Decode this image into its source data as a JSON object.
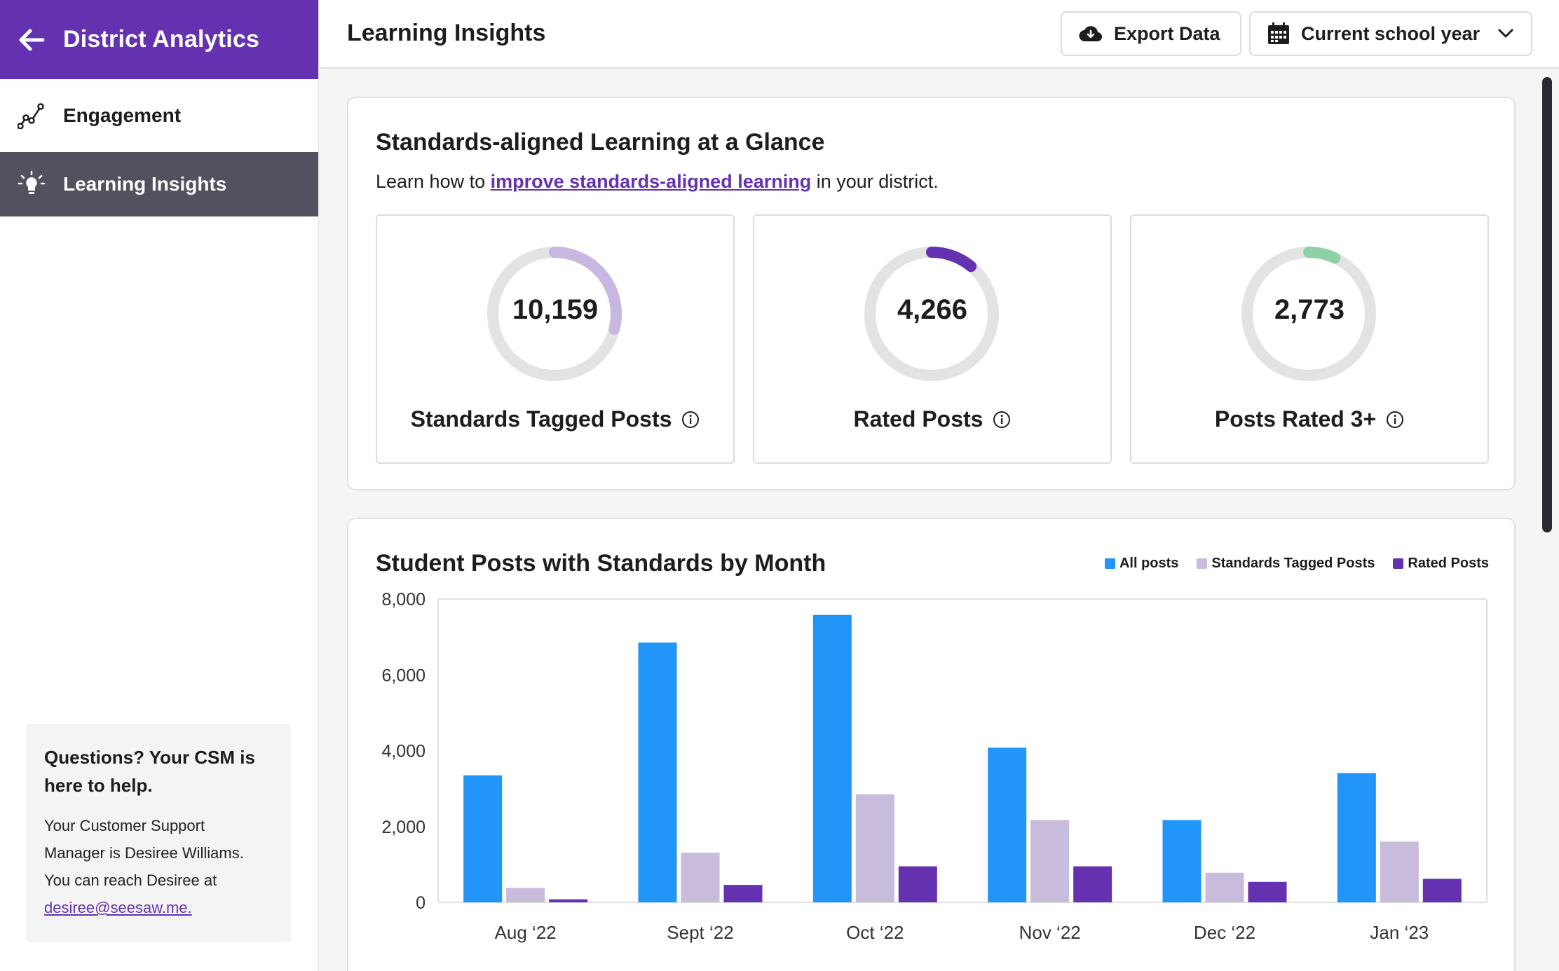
{
  "sidebar": {
    "title": "District Analytics",
    "items": [
      {
        "label": "Engagement",
        "icon": "line-chart-icon",
        "active": false
      },
      {
        "label": "Learning Insights",
        "icon": "lightbulb-icon",
        "active": true
      }
    ],
    "csm": {
      "heading": "Questions? Your CSM is here to help.",
      "line1": "Your Customer Support",
      "line2": "Manager is Desiree Williams.",
      "line3": "You can reach Desiree at",
      "email": "desiree@seesaw.me."
    }
  },
  "header": {
    "title": "Learning Insights",
    "export_label": "Export Data",
    "period_label": "Current school year"
  },
  "glance": {
    "title": "Standards-aligned Learning at a Glance",
    "sub_prefix": "Learn how to ",
    "sub_link": "improve standards-aligned learning",
    "sub_suffix": " in your district.",
    "stats": [
      {
        "value": "10,159",
        "label": "Standards Tagged Posts",
        "color": "#c8b7e0",
        "fraction": 0.29
      },
      {
        "value": "4,266",
        "label": "Rated Posts",
        "color": "#6432b0",
        "fraction": 0.11
      },
      {
        "value": "2,773",
        "label": "Posts Rated 3+",
        "color": "#8ed0a8",
        "fraction": 0.07
      }
    ]
  },
  "chart_data": {
    "type": "bar",
    "title": "Student Posts with Standards by Month",
    "categories": [
      "Aug  ‘22",
      "Sept ‘22",
      "Oct ‘22",
      "Nov ‘22",
      "Dec ‘22",
      "Jan ‘23"
    ],
    "series": [
      {
        "name": "All posts",
        "color": "#2196f8",
        "values": [
          3350,
          6850,
          7580,
          4080,
          2170,
          3410
        ]
      },
      {
        "name": "Standards Tagged Posts",
        "color": "#c8bbdc",
        "values": [
          380,
          1310,
          2850,
          2170,
          780,
          1600
        ]
      },
      {
        "name": "Rated Posts",
        "color": "#6432b0",
        "values": [
          80,
          460,
          950,
          950,
          540,
          620
        ]
      }
    ],
    "yticks": [
      "0",
      "2,000",
      "4,000",
      "6,000",
      "8,000"
    ],
    "ylim": [
      0,
      8000
    ],
    "legend": "top-right",
    "grid": false
  }
}
